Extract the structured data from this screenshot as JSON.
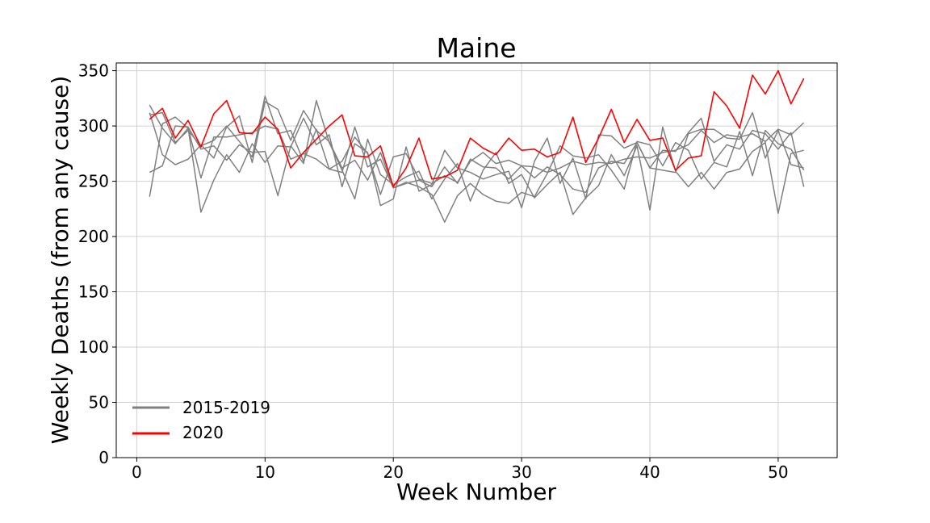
{
  "chart_data": {
    "type": "line",
    "title": "Maine",
    "xlabel": "Week Number",
    "ylabel": "Weekly Deaths (from any cause)",
    "xlim": [
      -1.6,
      54.6
    ],
    "ylim": [
      0,
      357
    ],
    "xticks": [
      0,
      10,
      20,
      30,
      40,
      50
    ],
    "yticks": [
      0,
      50,
      100,
      150,
      200,
      250,
      300,
      350
    ],
    "grid": true,
    "legend_position": "lower-left",
    "legend": [
      {
        "label": "2015-2019",
        "color": "#808080"
      },
      {
        "label": "2020",
        "color": "#ff0000"
      }
    ],
    "x": [
      1,
      2,
      3,
      4,
      5,
      6,
      7,
      8,
      9,
      10,
      11,
      12,
      13,
      14,
      15,
      16,
      17,
      18,
      19,
      20,
      21,
      22,
      23,
      24,
      25,
      26,
      27,
      28,
      29,
      30,
      31,
      32,
      33,
      34,
      35,
      36,
      37,
      38,
      39,
      40,
      41,
      42,
      43,
      44,
      45,
      46,
      47,
      48,
      49,
      50,
      51,
      52
    ],
    "series": [
      {
        "color": "#808080",
        "values": [
          319,
          298,
          284,
          298,
          253,
          290,
          290,
          292,
          294,
          300,
          297,
          270,
          275,
          270,
          261,
          258,
          299,
          263,
          270,
          244,
          248,
          251,
          245,
          263,
          248,
          270,
          263,
          262,
          252,
          264,
          263,
          258,
          262,
          268,
          265,
          267,
          266,
          270,
          272,
          271,
          276,
          278,
          283,
          296,
          285,
          292,
          290,
          293,
          286,
          297,
          292,
          303
        ]
      },
      {
        "color": "#808080",
        "values": [
          310,
          312,
          285,
          296,
          282,
          287,
          300,
          286,
          272,
          327,
          293,
          296,
          268,
          297,
          261,
          268,
          290,
          275,
          238,
          272,
          275,
          252,
          248,
          255,
          249,
          268,
          276,
          266,
          269,
          264,
          253,
          263,
          256,
          243,
          240,
          262,
          268,
          266,
          285,
          262,
          278,
          277,
          294,
          307,
          268,
          283,
          279,
          296,
          293,
          279,
          294,
          245
        ]
      },
      {
        "color": "#808080",
        "values": [
          236,
          302,
          308,
          298,
          222,
          251,
          274,
          258,
          284,
          267,
          282,
          281,
          307,
          283,
          292,
          245,
          284,
          276,
          228,
          234,
          281,
          241,
          247,
          278,
          262,
          258,
          252,
          256,
          259,
          226,
          268,
          289,
          248,
          271,
          234,
          292,
          291,
          280,
          285,
          262,
          260,
          258,
          293,
          297,
          297,
          289,
          288,
          312,
          271,
          296,
          265,
          262
        ]
      },
      {
        "color": "#808080",
        "values": [
          258,
          264,
          300,
          299,
          279,
          282,
          269,
          283,
          276,
          277,
          237,
          282,
          266,
          323,
          285,
          260,
          234,
          288,
          256,
          247,
          254,
          259,
          234,
          252,
          266,
          232,
          260,
          276,
          248,
          256,
          235,
          247,
          258,
          220,
          235,
          246,
          274,
          255,
          282,
          224,
          299,
          259,
          245,
          258,
          243,
          258,
          261,
          277,
          285,
          221,
          275,
          278
        ]
      },
      {
        "color": "#808080",
        "values": [
          312,
          274,
          265,
          270,
          283,
          271,
          299,
          309,
          267,
          322,
          315,
          287,
          314,
          296,
          286,
          262,
          269,
          251,
          276,
          244,
          249,
          245,
          238,
          213,
          237,
          248,
          238,
          232,
          230,
          240,
          236,
          257,
          282,
          273,
          271,
          274,
          260,
          243,
          286,
          283,
          264,
          285,
          278,
          252,
          267,
          263,
          295,
          255,
          296,
          284,
          279,
          260
        ]
      },
      {
        "color": "#ff0000",
        "values": [
          306,
          316,
          289,
          305,
          281,
          311,
          323,
          294,
          293,
          308,
          297,
          262,
          276,
          288,
          300,
          310,
          273,
          272,
          282,
          245,
          262,
          289,
          252,
          254,
          260,
          289,
          280,
          274,
          289,
          278,
          279,
          272,
          276,
          308,
          267,
          289,
          315,
          285,
          306,
          287,
          289,
          260,
          271,
          273,
          331,
          318,
          298,
          346,
          329,
          350,
          320,
          343
        ]
      }
    ]
  }
}
